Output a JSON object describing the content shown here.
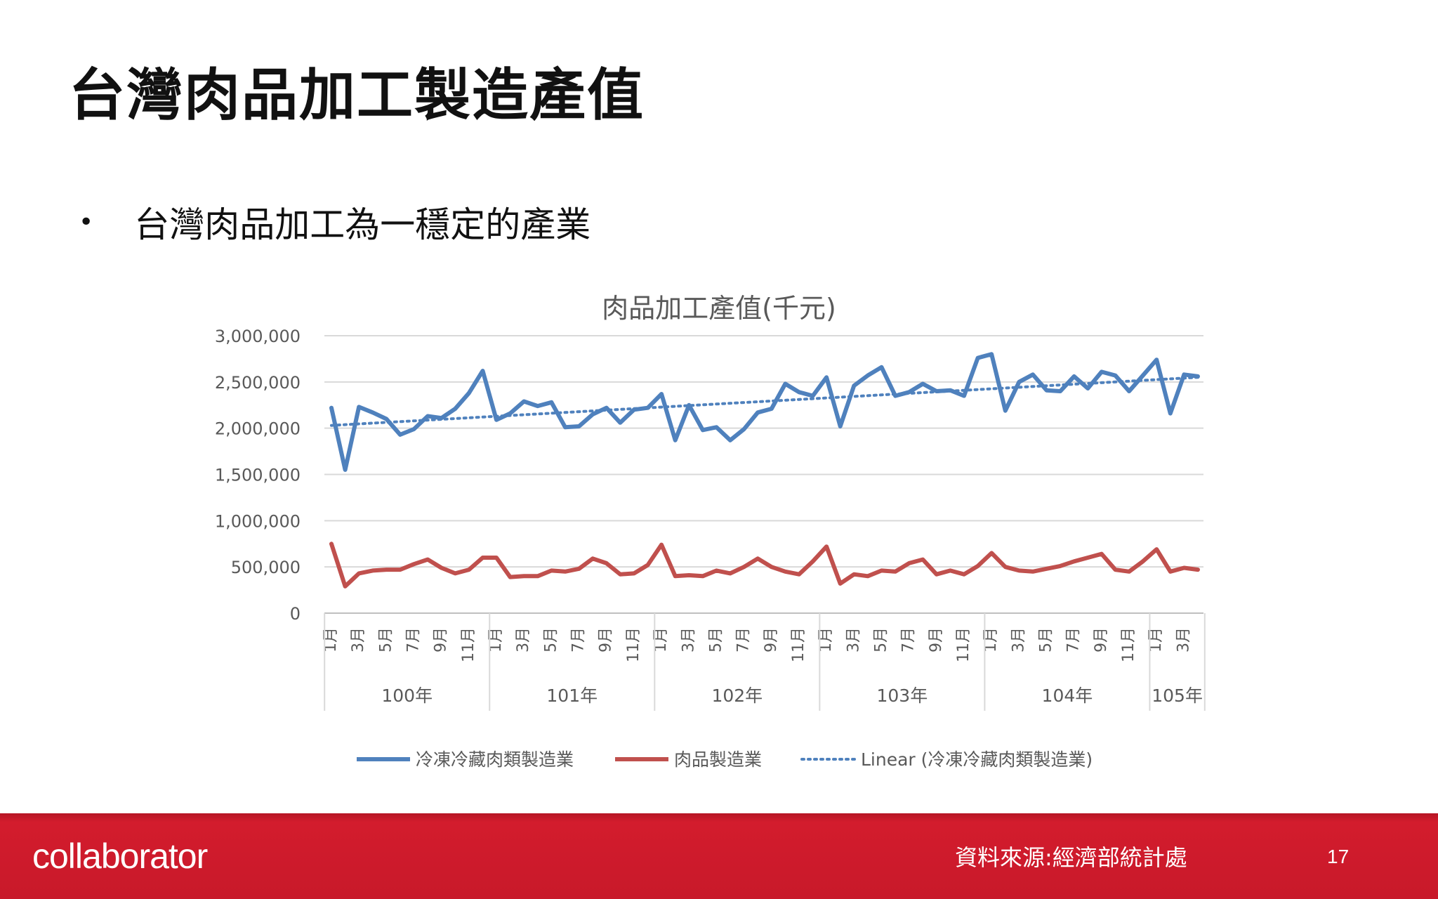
{
  "slide": {
    "title": "台灣肉品加工製造產值",
    "bullet": "台灣肉品加工為一穩定的產業",
    "bullet_symbol": "•"
  },
  "footer": {
    "logo": "collaborator",
    "source": "資料來源:經濟部統計處",
    "page_number": "17",
    "color": "#c8192a"
  },
  "chart_data": {
    "type": "line",
    "title": "肉品加工產值(千元)",
    "ylim": [
      0,
      3000000
    ],
    "yticks": [
      0,
      500000,
      1000000,
      1500000,
      2000000,
      2500000,
      3000000
    ],
    "ytick_labels": [
      "0",
      "500,000",
      "1,000,000",
      "1,500,000",
      "2,000,000",
      "2,500,000",
      "3,000,000"
    ],
    "grid": true,
    "legend_position": "bottom",
    "years": [
      {
        "label": "100年",
        "months": 12
      },
      {
        "label": "101年",
        "months": 12
      },
      {
        "label": "102年",
        "months": 12
      },
      {
        "label": "103年",
        "months": 12
      },
      {
        "label": "104年",
        "months": 12
      },
      {
        "label": "105年",
        "months": 4
      }
    ],
    "month_labels": [
      "1月",
      "3月",
      "5月",
      "7月",
      "9月",
      "11月"
    ],
    "series": [
      {
        "name": "冷凍冷藏肉類製造業",
        "color": "#4f81bd",
        "values": [
          2220000,
          1550000,
          2230000,
          2170000,
          2100000,
          1930000,
          1990000,
          2130000,
          2110000,
          2210000,
          2380000,
          2620000,
          2090000,
          2160000,
          2290000,
          2240000,
          2280000,
          2010000,
          2020000,
          2150000,
          2220000,
          2060000,
          2200000,
          2220000,
          2370000,
          1870000,
          2250000,
          1980000,
          2010000,
          1870000,
          1990000,
          2170000,
          2210000,
          2480000,
          2390000,
          2350000,
          2550000,
          2020000,
          2460000,
          2570000,
          2660000,
          2350000,
          2390000,
          2480000,
          2400000,
          2410000,
          2350000,
          2760000,
          2800000,
          2190000,
          2500000,
          2580000,
          2410000,
          2400000,
          2560000,
          2430000,
          2610000,
          2570000,
          2400000,
          2570000,
          2740000,
          2160000,
          2580000,
          2560000
        ]
      },
      {
        "name": "肉品製造業",
        "color": "#c0504d",
        "values": [
          750000,
          290000,
          430000,
          460000,
          470000,
          470000,
          530000,
          580000,
          490000,
          430000,
          470000,
          600000,
          600000,
          390000,
          400000,
          400000,
          460000,
          450000,
          480000,
          590000,
          540000,
          420000,
          430000,
          520000,
          740000,
          400000,
          410000,
          400000,
          460000,
          430000,
          500000,
          590000,
          500000,
          450000,
          420000,
          560000,
          720000,
          320000,
          420000,
          400000,
          460000,
          450000,
          540000,
          580000,
          420000,
          460000,
          420000,
          510000,
          650000,
          500000,
          460000,
          450000,
          480000,
          510000,
          560000,
          600000,
          640000,
          470000,
          450000,
          560000,
          690000,
          450000,
          490000,
          470000
        ]
      },
      {
        "name": "Linear (冷凍冷藏肉類製造業)",
        "color": "#4f81bd",
        "trendline": "linear",
        "values": [
          2030000,
          2550000
        ]
      }
    ]
  }
}
